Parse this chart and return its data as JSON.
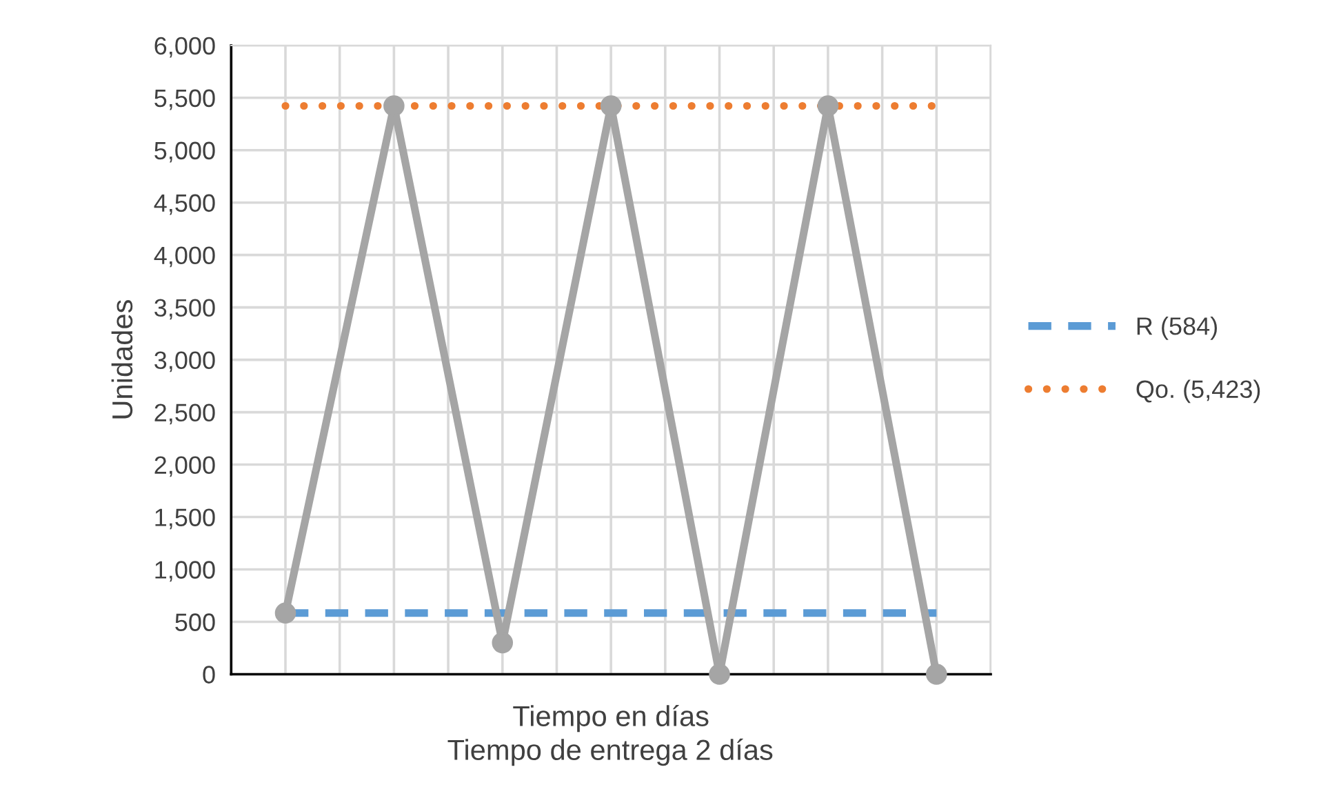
{
  "chart_data": {
    "type": "line",
    "xlabel": "Tiempo en días",
    "ylabel": "Unidades",
    "annotations": [
      "Tiempo de entrega 2 días"
    ],
    "categories": [
      null,
      null,
      null,
      null,
      null,
      null,
      null,
      null,
      null,
      null,
      null,
      null,
      null
    ],
    "ylim": [
      0,
      6000
    ],
    "yticks": [
      {
        "value": 0,
        "label": "0"
      },
      {
        "value": 500,
        "label": "500"
      },
      {
        "value": 1000,
        "label": "1,000"
      },
      {
        "value": 1500,
        "label": "1,500"
      },
      {
        "value": 2000,
        "label": "2,000"
      },
      {
        "value": 2500,
        "label": "2,500"
      },
      {
        "value": 3000,
        "label": "3,000"
      },
      {
        "value": 3500,
        "label": "3,500"
      },
      {
        "value": 4000,
        "label": "4,000"
      },
      {
        "value": 4500,
        "label": "4,500"
      },
      {
        "value": 5000,
        "label": "5,000"
      },
      {
        "value": 5500,
        "label": "5,500"
      },
      {
        "value": 6000,
        "label": "6,000"
      }
    ],
    "grid": true,
    "legend": "right",
    "series": [
      {
        "name": "R (584)",
        "color": "#5b9bd5",
        "line_style": "dashed",
        "marker": "none",
        "values": [
          584,
          584,
          584,
          584,
          584,
          584,
          584,
          584,
          584,
          584,
          584,
          584,
          584
        ]
      },
      {
        "name": "Qo. (5,423)",
        "color": "#ed7d31",
        "line_style": "dotted",
        "marker": "none",
        "values": [
          5423,
          5423,
          5423,
          5423,
          5423,
          5423,
          5423,
          5423,
          5423,
          5423,
          5423,
          5423,
          5423
        ]
      },
      {
        "color": "#a5a5a5",
        "line_style": "solid",
        "marker": "circle",
        "values": [
          584,
          null,
          5423,
          null,
          300,
          null,
          5423,
          null,
          0,
          null,
          5423,
          null,
          0
        ]
      }
    ]
  }
}
